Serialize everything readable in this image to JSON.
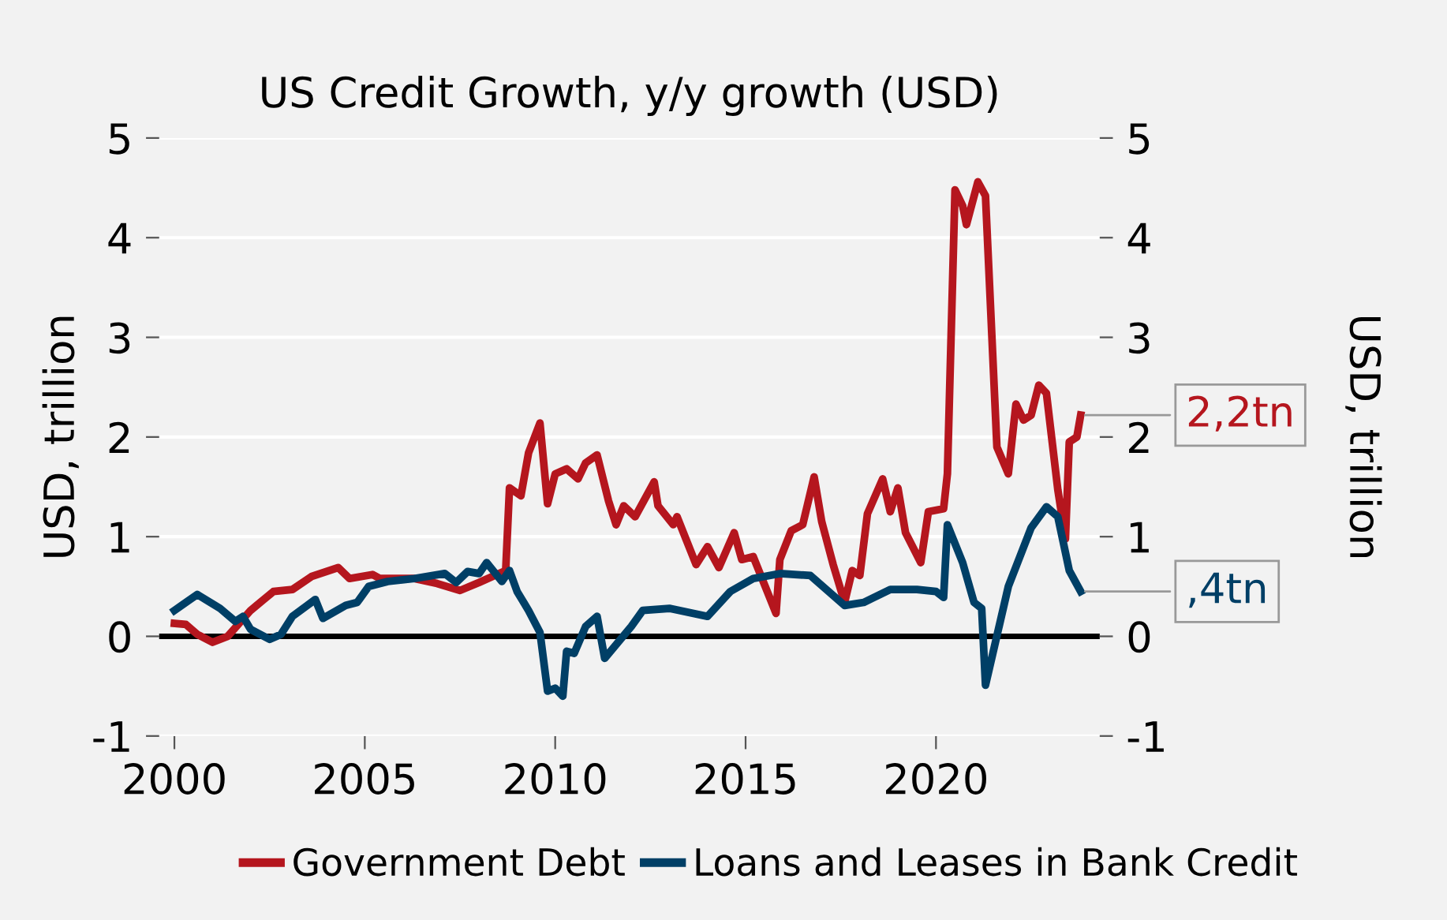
{
  "chart_data": {
    "type": "line",
    "title": "US Credit Growth, y/y growth (USD)",
    "ylabel": "USD, trillion",
    "y2label": "USD, trillion",
    "xlim": [
      1999.6,
      2024.3
    ],
    "xticks": [
      2000,
      2005,
      2010,
      2015,
      2020
    ],
    "ylim": [
      -1,
      5
    ],
    "yticks": [
      -1,
      0,
      1,
      2,
      3,
      4,
      5
    ],
    "y2lim": [
      -1,
      5
    ],
    "y2ticks": [
      -1,
      0,
      1,
      2,
      3,
      4,
      5
    ],
    "grid": "y",
    "legend": "bottom",
    "marker": "none",
    "line_style": "solid",
    "ref_lines": [
      {
        "axis": "y",
        "value": 0,
        "color": "#000000"
      }
    ],
    "annotations": [
      {
        "text": "2,2tn",
        "x": 2023.8,
        "y": 2.22
      },
      {
        "text": ",4tn",
        "x": 2023.8,
        "y": 0.45
      }
    ],
    "series": [
      {
        "name": "Government Debt",
        "color": "#b5161e",
        "x": [
          2000,
          2000.3,
          2000.6,
          2001.0,
          2001.4,
          2002.0,
          2002.6,
          2003.1,
          2003.6,
          2004.3,
          2004.6,
          2005.2,
          2005.4,
          2006.3,
          2006.9,
          2007.5,
          2008.0,
          2008.7,
          2008.8,
          2009.1,
          2009.3,
          2009.6,
          2009.8,
          2010.0,
          2010.3,
          2010.6,
          2010.8,
          2011.1,
          2011.4,
          2011.6,
          2011.8,
          2012.1,
          2012.6,
          2012.7,
          2013.1,
          2013.2,
          2013.7,
          2014.0,
          2014.3,
          2014.7,
          2014.9,
          2015.2,
          2015.8,
          2015.9,
          2016.2,
          2016.5,
          2016.8,
          2017.0,
          2017.3,
          2017.6,
          2017.8,
          2018.0,
          2018.2,
          2018.6,
          2018.8,
          2019.0,
          2019.2,
          2019.6,
          2019.8,
          2020.2,
          2020.3,
          2020.5,
          2020.7,
          2020.8,
          2021.1,
          2021.3,
          2021.6,
          2021.9,
          2022.1,
          2022.3,
          2022.5,
          2022.7,
          2022.9,
          2023.2,
          2023.4,
          2023.5,
          2023.7,
          2023.8
        ],
        "values": [
          0.13,
          0.12,
          0.02,
          -0.06,
          0.0,
          0.26,
          0.45,
          0.47,
          0.6,
          0.69,
          0.58,
          0.62,
          0.58,
          0.58,
          0.53,
          0.46,
          0.54,
          0.66,
          1.49,
          1.41,
          1.84,
          2.14,
          1.33,
          1.63,
          1.68,
          1.58,
          1.74,
          1.82,
          1.36,
          1.12,
          1.31,
          1.2,
          1.55,
          1.31,
          1.12,
          1.2,
          0.72,
          0.9,
          0.69,
          1.04,
          0.77,
          0.8,
          0.23,
          0.77,
          1.06,
          1.12,
          1.6,
          1.15,
          0.72,
          0.34,
          0.66,
          0.61,
          1.23,
          1.58,
          1.25,
          1.49,
          1.04,
          0.74,
          1.25,
          1.28,
          1.63,
          4.48,
          4.32,
          4.13,
          4.56,
          4.42,
          1.9,
          1.63,
          2.33,
          2.17,
          2.22,
          2.52,
          2.44,
          1.47,
          0.98,
          1.95,
          2.0,
          2.22
        ]
      },
      {
        "name": "Loans and Leases in Bank Credit",
        "color": "#003f66",
        "x": [
          2000,
          2000.6,
          2001.2,
          2001.6,
          2001.8,
          2002.0,
          2002.5,
          2002.8,
          2003.1,
          2003.7,
          2003.9,
          2004.5,
          2004.8,
          2005.1,
          2005.6,
          2006.3,
          2007.1,
          2007.4,
          2007.7,
          2008.0,
          2008.2,
          2008.6,
          2008.8,
          2009.0,
          2009.3,
          2009.6,
          2009.8,
          2010.0,
          2010.2,
          2010.3,
          2010.5,
          2010.8,
          2011.1,
          2011.3,
          2012.0,
          2012.3,
          2013.0,
          2014.0,
          2014.6,
          2015.2,
          2015.9,
          2016.7,
          2017.6,
          2018.1,
          2018.8,
          2019.5,
          2020.0,
          2020.2,
          2020.3,
          2020.7,
          2021.0,
          2021.2,
          2021.3,
          2021.9,
          2022.5,
          2022.9,
          2023.2,
          2023.5,
          2023.8
        ],
        "values": [
          0.26,
          0.42,
          0.28,
          0.15,
          0.2,
          0.07,
          -0.03,
          0.02,
          0.2,
          0.37,
          0.18,
          0.31,
          0.34,
          0.5,
          0.55,
          0.58,
          0.63,
          0.54,
          0.65,
          0.63,
          0.74,
          0.55,
          0.66,
          0.45,
          0.26,
          0.04,
          -0.55,
          -0.52,
          -0.6,
          -0.15,
          -0.17,
          0.1,
          0.2,
          -0.22,
          0.1,
          0.26,
          0.28,
          0.2,
          0.45,
          0.58,
          0.63,
          0.61,
          0.31,
          0.34,
          0.47,
          0.47,
          0.45,
          0.39,
          1.12,
          0.74,
          0.34,
          0.28,
          -0.49,
          0.5,
          1.09,
          1.3,
          1.2,
          0.66,
          0.45
        ]
      }
    ]
  }
}
